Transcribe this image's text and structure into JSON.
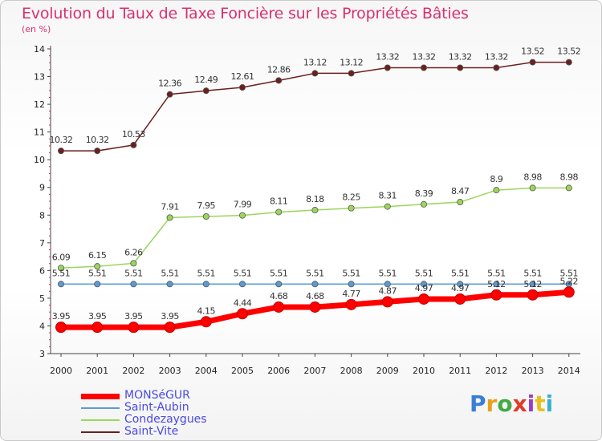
{
  "chart_data": {
    "type": "line",
    "title": "Evolution du Taux de Taxe Foncière sur les Propriétés Bâties",
    "subtitle": "(en %)",
    "x": [
      "2000",
      "2001",
      "2002",
      "2003",
      "2004",
      "2005",
      "2006",
      "2007",
      "2008",
      "2009",
      "2010",
      "2011",
      "2012",
      "2013",
      "2014"
    ],
    "ylim": [
      3,
      14
    ],
    "yticks": [
      "3",
      "4",
      "5",
      "6",
      "7",
      "8",
      "9",
      "10",
      "11",
      "12",
      "13",
      "14"
    ],
    "series": [
      {
        "name": "MONSéGUR",
        "color": "#ff0000",
        "values": [
          3.95,
          3.95,
          3.95,
          3.95,
          4.15,
          4.44,
          4.68,
          4.68,
          4.77,
          4.87,
          4.97,
          4.97,
          5.12,
          5.12,
          5.22
        ],
        "labels": [
          "3.95",
          "3.95",
          "3.95",
          "3.95",
          "4.15",
          "4.44",
          "4.68",
          "4.68",
          "4.77",
          "4.87",
          "4.97",
          "4.97",
          "5.12",
          "5.12",
          "5.22"
        ]
      },
      {
        "name": "Saint-Aubin",
        "color": "#5b9bd5",
        "values": [
          5.51,
          5.51,
          5.51,
          5.51,
          5.51,
          5.51,
          5.51,
          5.51,
          5.51,
          5.51,
          5.51,
          5.51,
          5.51,
          5.51,
          5.51
        ],
        "labels": [
          "5.51",
          "5.51",
          "5.51",
          "5.51",
          "5.51",
          "5.51",
          "5.51",
          "5.51",
          "5.51",
          "5.51",
          "5.51",
          "5.51",
          "5.51",
          "5.51",
          "5.51"
        ]
      },
      {
        "name": "Condezaygues",
        "color": "#9bd65a",
        "values": [
          6.09,
          6.15,
          6.26,
          7.91,
          7.95,
          7.99,
          8.11,
          8.18,
          8.25,
          8.31,
          8.39,
          8.47,
          8.9,
          8.98,
          8.98
        ],
        "labels": [
          "6.09",
          "6.15",
          "6.26",
          "7.91",
          "7.95",
          "7.99",
          "8.11",
          "8.18",
          "8.25",
          "8.31",
          "8.39",
          "8.47",
          "8.9",
          "8.98",
          "8.98"
        ]
      },
      {
        "name": "Saint-Vite",
        "color": "#6b1f1f",
        "values": [
          10.32,
          10.32,
          10.53,
          12.36,
          12.49,
          12.61,
          12.86,
          13.12,
          13.12,
          13.32,
          13.32,
          13.32,
          13.32,
          13.52,
          13.52
        ],
        "labels": [
          "10.32",
          "10.32",
          "10.53",
          "12.36",
          "12.49",
          "12.61",
          "12.86",
          "13.12",
          "13.12",
          "13.32",
          "13.32",
          "13.32",
          "13.32",
          "13.52",
          "13.52"
        ]
      }
    ],
    "grid": false,
    "legend_position": "bottom-left"
  },
  "logo": {
    "text": "Proxiti",
    "colors": [
      "#3a7fd5",
      "#e8a020",
      "#44aa44",
      "#e03a2a",
      "#9a3fc0",
      "#e8c020",
      "#3ab0d0"
    ]
  }
}
